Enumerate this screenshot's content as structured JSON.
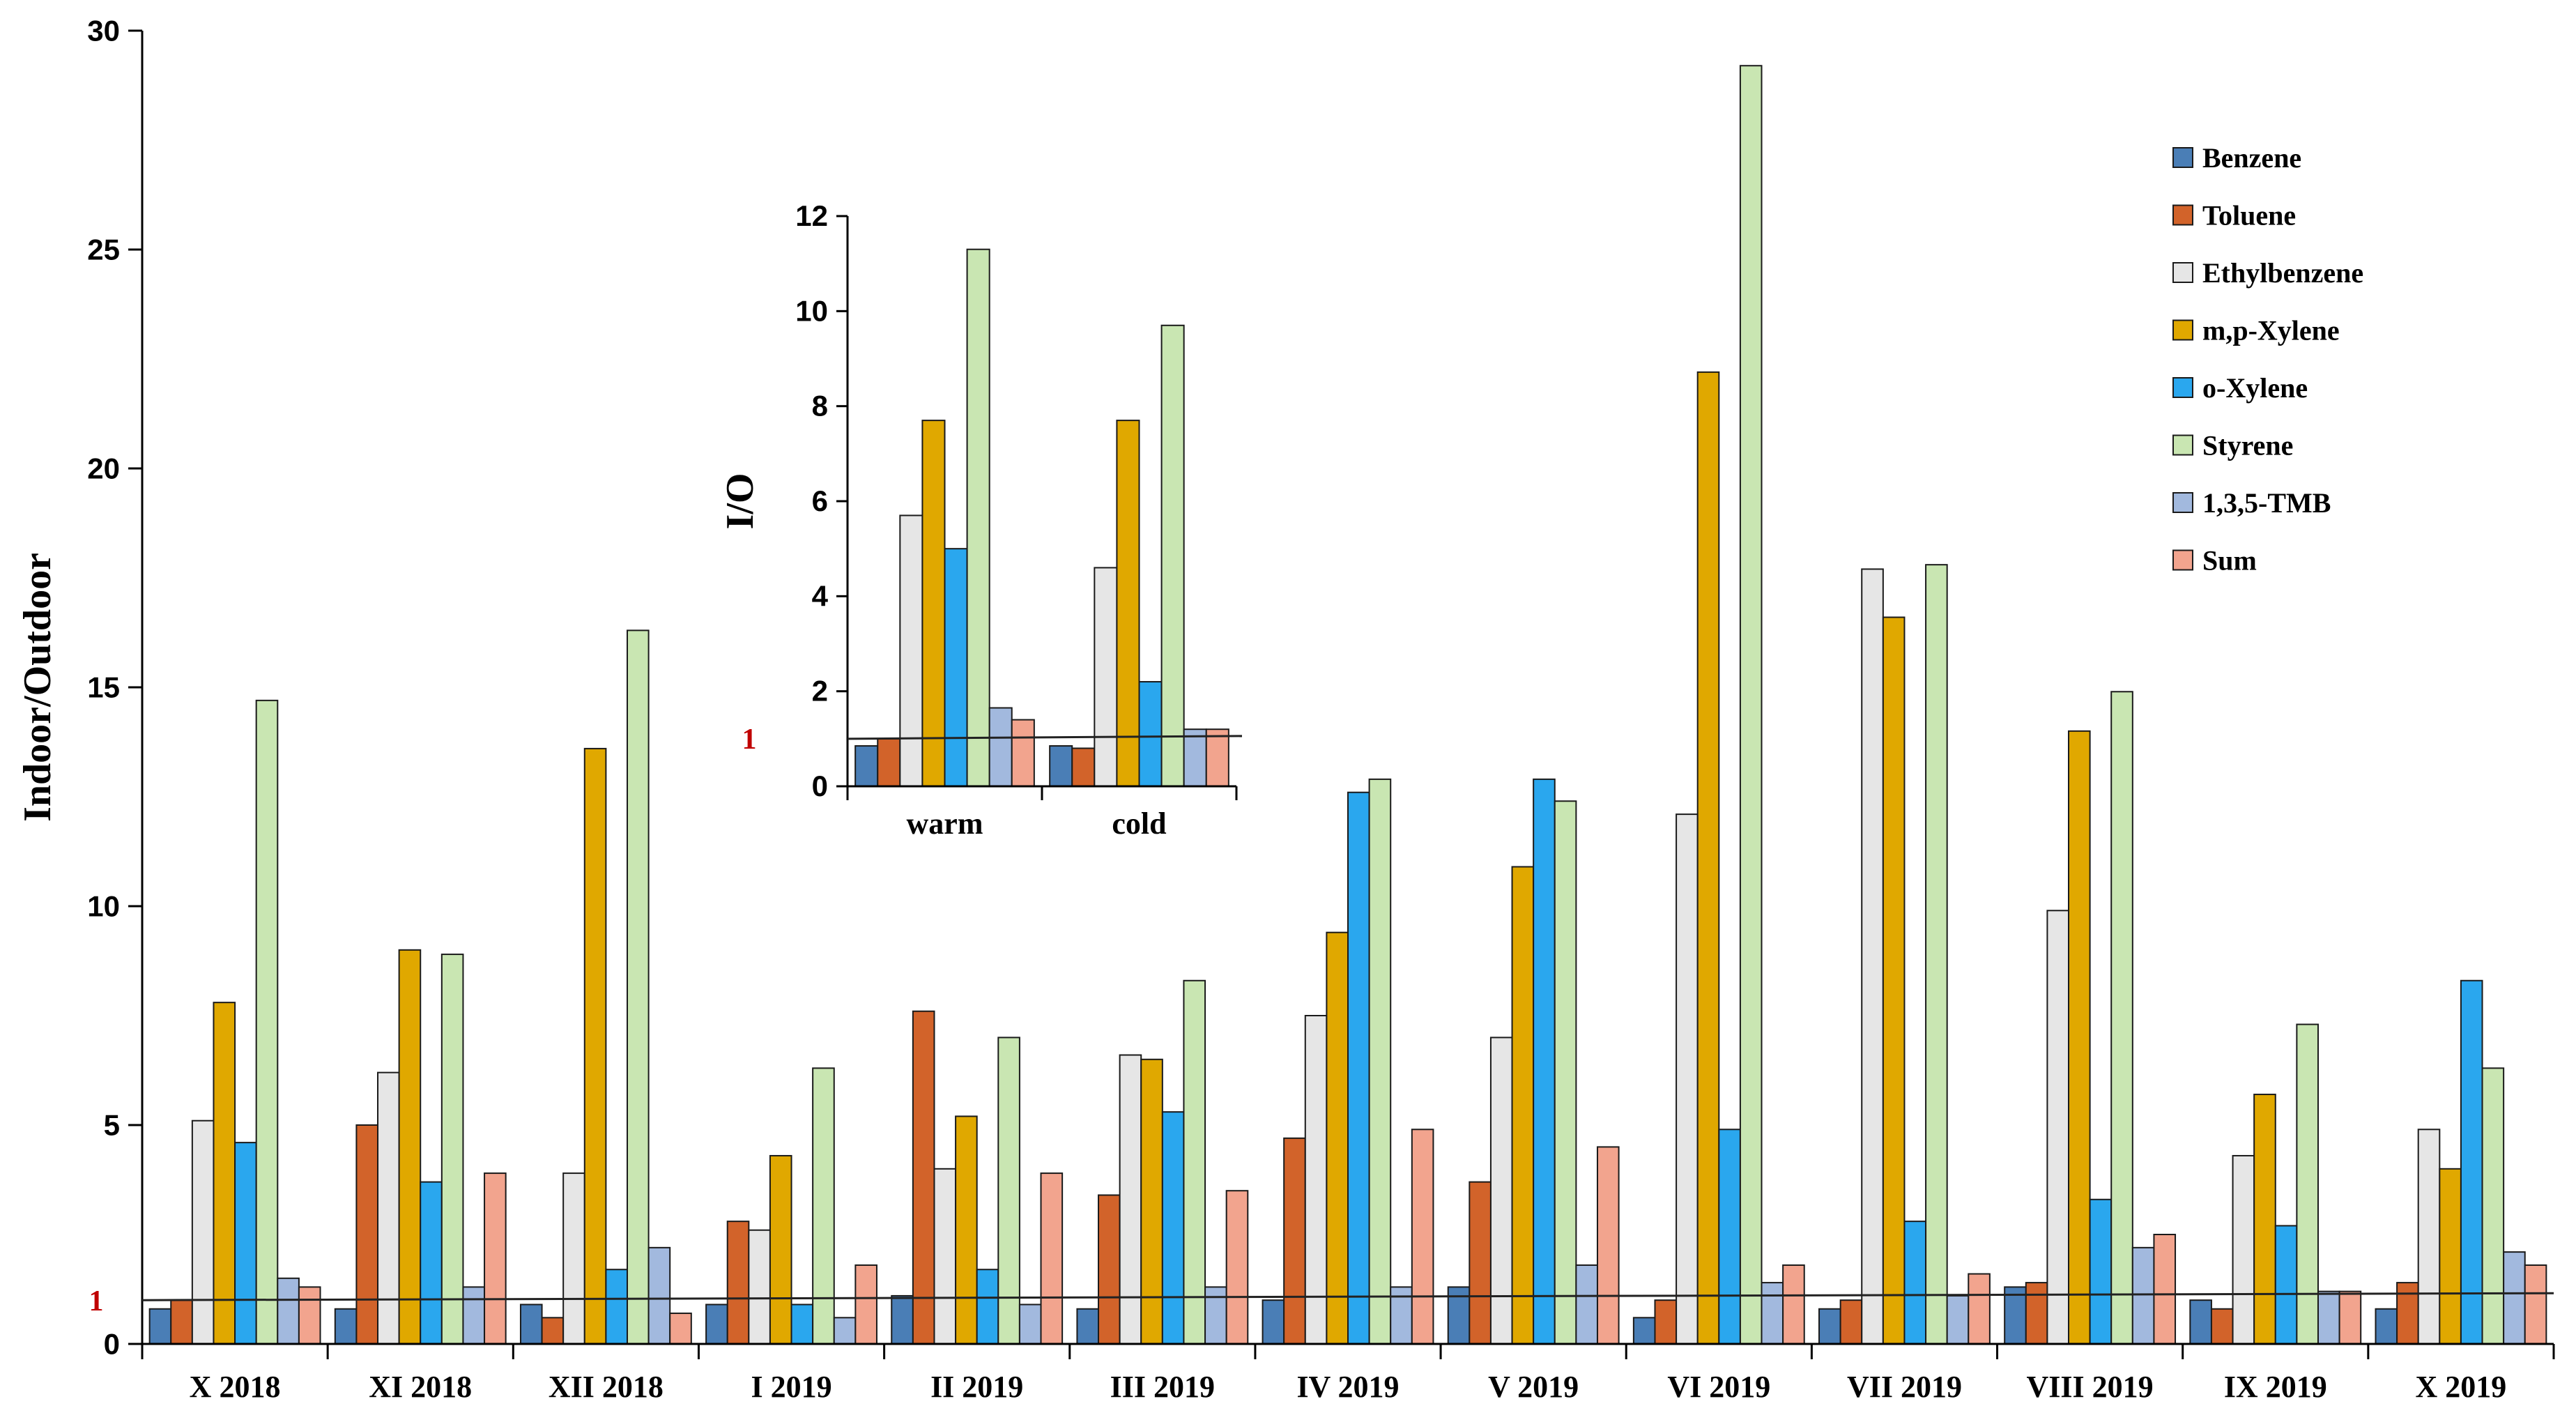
{
  "colors": {
    "Benzene": "#4a7eb6",
    "Toluene": "#d2632a",
    "Ethylbenzene": "#e6e6e6",
    "m,p-Xylene": "#e0a800",
    "o-Xylene": "#2aa7ee",
    "Styrene": "#c9e6b2",
    "1,3,5-TMB": "#a2b9de",
    "Sum": "#f2a48e"
  },
  "chart_data": [
    {
      "type": "bar",
      "title": "",
      "xlabel": "",
      "ylabel": "Indoor/Outdoor",
      "ylim": [
        0,
        30
      ],
      "yticks": [
        "0",
        "5",
        "10",
        "15",
        "20",
        "25",
        "30"
      ],
      "reference_line": {
        "value": 1,
        "label": "1"
      },
      "legend_position": "top-right",
      "categories": [
        "X 2018",
        "XI 2018",
        "XII 2018",
        "I 2019",
        "II 2019",
        "III 2019",
        "IV 2019",
        "V 2019",
        "VI 2019",
        "VII 2019",
        "VIII 2019",
        "IX 2019",
        "X 2019"
      ],
      "series": [
        {
          "name": "Benzene",
          "values": [
            0.8,
            0.8,
            0.9,
            0.9,
            1.1,
            0.8,
            1.0,
            1.3,
            0.6,
            0.8,
            1.3,
            1.0,
            0.8
          ]
        },
        {
          "name": "Toluene",
          "values": [
            1.0,
            5.0,
            0.6,
            2.8,
            7.6,
            3.4,
            4.7,
            3.7,
            1.0,
            1.0,
            1.4,
            0.8,
            1.4
          ]
        },
        {
          "name": "Ethylbenzene",
          "values": [
            5.1,
            6.2,
            3.9,
            2.6,
            4.0,
            6.6,
            7.5,
            7.0,
            12.1,
            17.7,
            9.9,
            4.3,
            4.9
          ]
        },
        {
          "name": "m,p-Xylene",
          "values": [
            7.8,
            9.0,
            13.6,
            4.3,
            5.2,
            6.5,
            9.4,
            10.9,
            22.2,
            16.6,
            14.0,
            5.7,
            4.0
          ]
        },
        {
          "name": "o-Xylene",
          "values": [
            4.6,
            3.7,
            1.7,
            0.9,
            1.7,
            5.3,
            12.6,
            12.9,
            4.9,
            2.8,
            3.3,
            2.7,
            8.3
          ]
        },
        {
          "name": "Styrene",
          "values": [
            14.7,
            8.9,
            16.3,
            6.3,
            7.0,
            8.3,
            12.9,
            12.4,
            29.2,
            17.8,
            14.9,
            7.3,
            6.3
          ]
        },
        {
          "name": "1,3,5-TMB",
          "values": [
            1.5,
            1.3,
            2.2,
            0.6,
            0.9,
            1.3,
            1.3,
            1.8,
            1.4,
            1.1,
            2.2,
            1.2,
            2.1
          ]
        },
        {
          "name": "Sum",
          "values": [
            1.3,
            3.9,
            0.7,
            1.8,
            3.9,
            3.5,
            4.9,
            4.5,
            1.8,
            1.6,
            2.5,
            1.2,
            1.8
          ]
        }
      ]
    },
    {
      "type": "bar",
      "title": "",
      "xlabel": "",
      "ylabel": "I/O",
      "ylim": [
        0,
        12
      ],
      "yticks": [
        "0",
        "2",
        "4",
        "6",
        "8",
        "10",
        "12"
      ],
      "reference_line": {
        "value": 1,
        "label": "1"
      },
      "categories": [
        "warm",
        "cold"
      ],
      "series": [
        {
          "name": "Benzene",
          "values": [
            0.85,
            0.85
          ]
        },
        {
          "name": "Toluene",
          "values": [
            1.0,
            0.8
          ]
        },
        {
          "name": "Ethylbenzene",
          "values": [
            5.7,
            4.6
          ]
        },
        {
          "name": "m,p-Xylene",
          "values": [
            7.7,
            7.7
          ]
        },
        {
          "name": "o-Xylene",
          "values": [
            5.0,
            2.2
          ]
        },
        {
          "name": "Styrene",
          "values": [
            11.3,
            9.7
          ]
        },
        {
          "name": "1,3,5-TMB",
          "values": [
            1.65,
            1.2
          ]
        },
        {
          "name": "Sum",
          "values": [
            1.4,
            1.2
          ]
        }
      ]
    }
  ]
}
